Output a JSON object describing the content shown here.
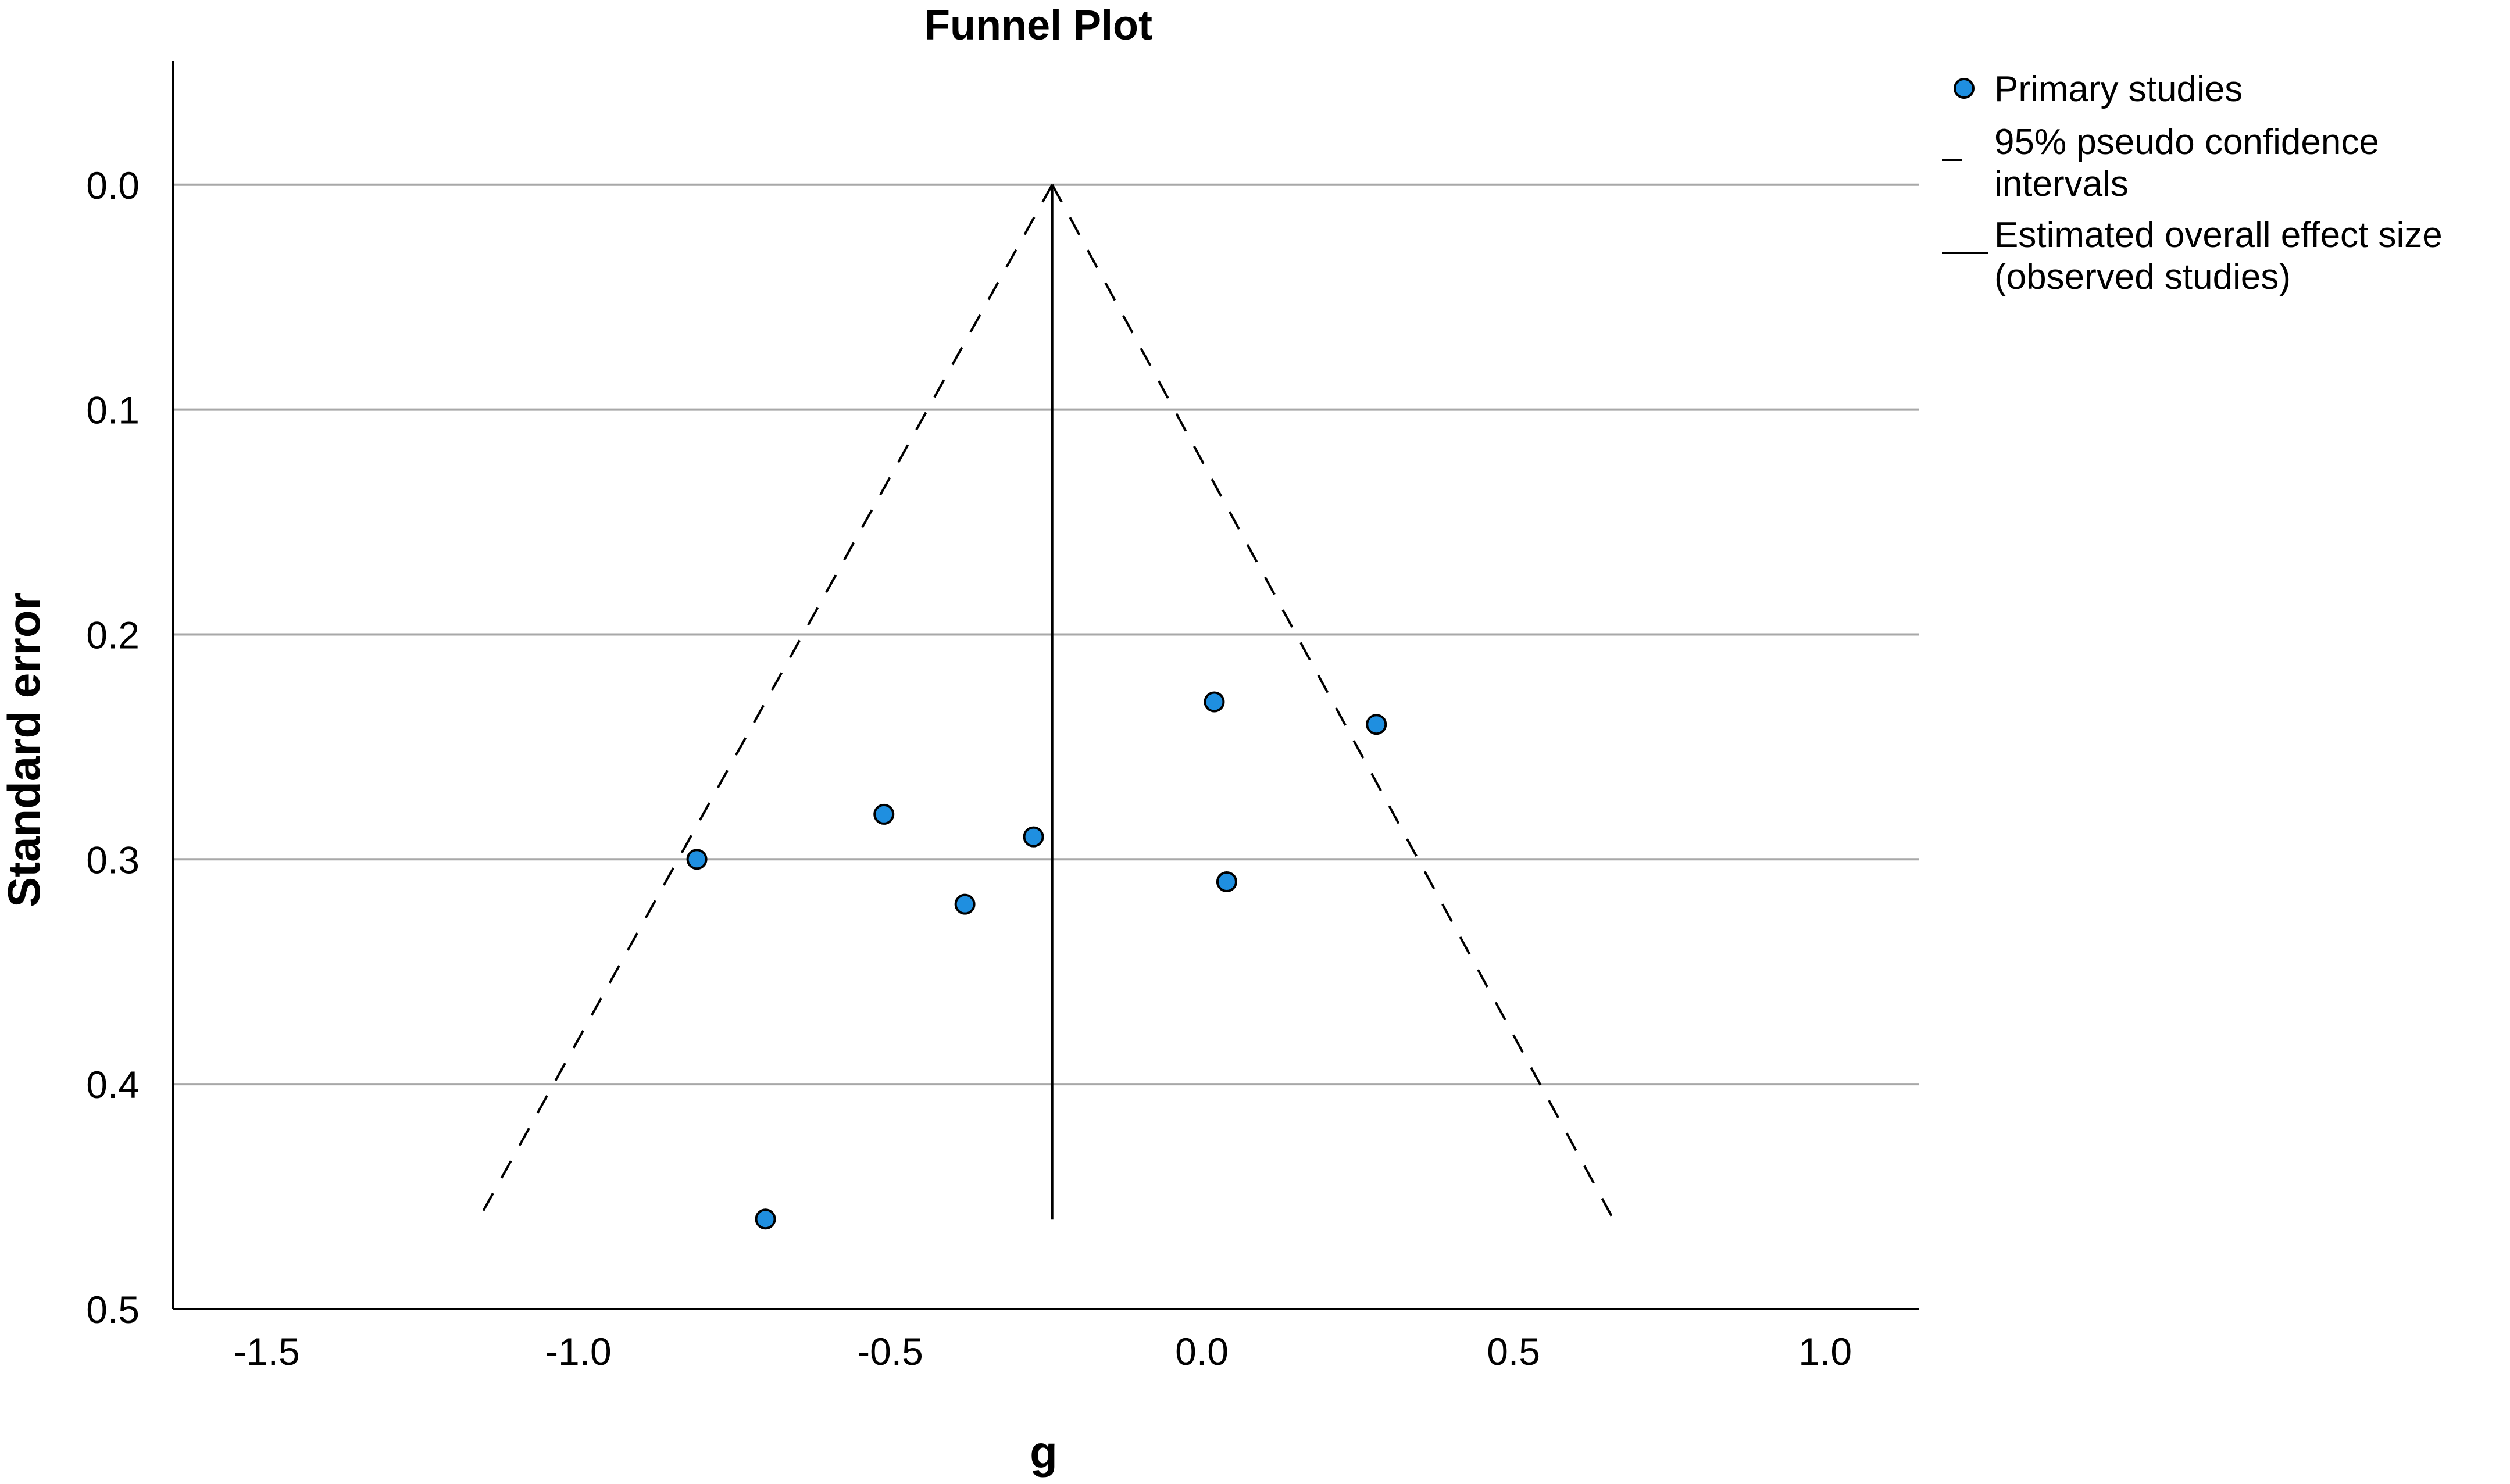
{
  "chart_data": {
    "type": "scatter",
    "title": "Funnel Plot",
    "xlabel": "g",
    "ylabel": "Standard error",
    "xlim": [
      -1.65,
      1.15
    ],
    "ylim": [
      0.5,
      -0.055
    ],
    "y_inverted": true,
    "grid": "horizontal",
    "xticks": [
      "-1.5",
      "-1.0",
      "-0.5",
      "0.0",
      "0.5",
      "1.0"
    ],
    "yticks": [
      "0.0",
      "0.1",
      "0.2",
      "0.3",
      "0.4",
      "0.5"
    ],
    "series": [
      {
        "name": "Primary studies",
        "kind": "points",
        "color": "#1f8fe0",
        "points": [
          {
            "x": -0.81,
            "y": 0.3
          },
          {
            "x": -0.7,
            "y": 0.46
          },
          {
            "x": -0.51,
            "y": 0.28
          },
          {
            "x": -0.38,
            "y": 0.32
          },
          {
            "x": -0.27,
            "y": 0.29
          },
          {
            "x": 0.02,
            "y": 0.23
          },
          {
            "x": 0.04,
            "y": 0.31
          },
          {
            "x": 0.28,
            "y": 0.24
          }
        ]
      },
      {
        "name": "95% pseudo confidence intervals",
        "kind": "dashed",
        "left": [
          {
            "x": -0.24,
            "y": 0.0
          },
          {
            "x": -1.16,
            "y": 0.46
          }
        ],
        "right": [
          {
            "x": -0.24,
            "y": 0.0
          },
          {
            "x": 0.66,
            "y": 0.46
          }
        ]
      },
      {
        "name": "Estimated overall effect size (observed studies)",
        "kind": "line",
        "x": -0.24,
        "y_range": [
          0.0,
          0.46
        ]
      }
    ],
    "legend": {
      "position": "top-right",
      "items": [
        {
          "symbol": "circle",
          "lines": [
            "Primary studies"
          ]
        },
        {
          "symbol": "dash",
          "lines": [
            "95% pseudo confidence",
            "intervals"
          ]
        },
        {
          "symbol": "solid",
          "lines": [
            "Estimated overall effect size",
            "(observed studies)"
          ]
        }
      ]
    }
  }
}
